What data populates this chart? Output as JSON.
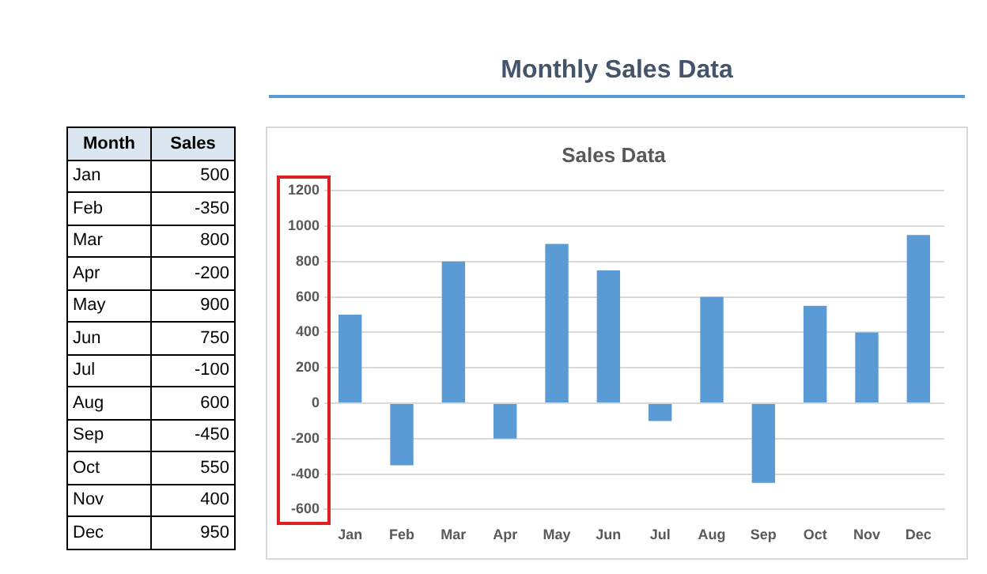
{
  "chart_data": [
    {
      "type": "other",
      "annotations": [
        "Month",
        "Sales",
        "Jan",
        "500",
        "Feb",
        "-350",
        "Mar",
        "800",
        "Apr",
        "-200",
        "May",
        "900",
        "Jun",
        "750",
        "Jul",
        "-100",
        "Aug",
        "600",
        "Sep",
        "-450",
        "Oct",
        "550",
        "Nov",
        "400",
        "Dec",
        "950"
      ]
    },
    {
      "type": "bar",
      "title": "Sales Data",
      "subtitle": "Monthly Sales Data",
      "categories": [
        "Jan",
        "Feb",
        "Mar",
        "Apr",
        "May",
        "Jun",
        "Jul",
        "Aug",
        "Sep",
        "Oct",
        "Nov",
        "Dec"
      ],
      "values": [
        500,
        -350,
        800,
        -200,
        900,
        750,
        -100,
        600,
        -450,
        550,
        400,
        950
      ],
      "color": "#5b9bd5",
      "ylim": [
        -600,
        1200
      ],
      "yticks": [
        -600,
        -400,
        -200,
        0,
        200,
        400,
        600,
        800,
        1000,
        1200
      ],
      "grid": "y",
      "legend": false
    }
  ]
}
